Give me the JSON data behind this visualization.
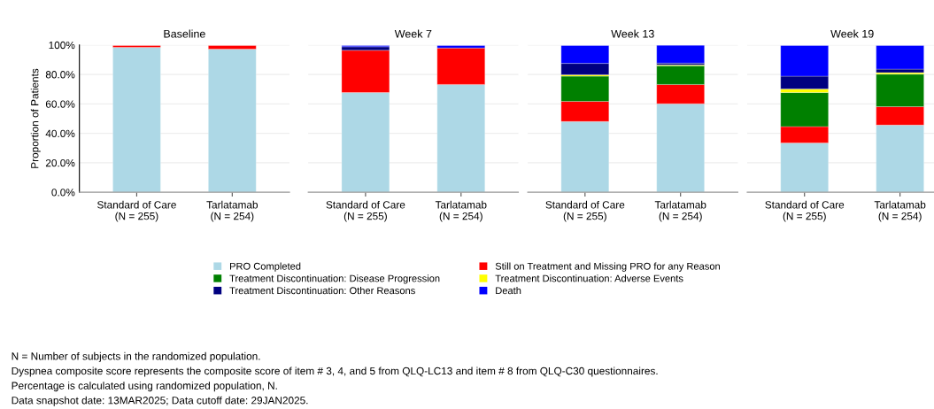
{
  "chart_data": [
    {
      "type": "bar",
      "stacked": true,
      "title": "Baseline",
      "ylabel": "Proportion of Patients",
      "categories": [
        "Standard of Care\n(N = 255)",
        "Tarlatamab\n(N = 254)"
      ],
      "ylim": [
        0,
        100
      ],
      "yticks": [
        {
          "value": 0,
          "label": "0.0%"
        },
        {
          "value": 20,
          "label": "20.0%"
        },
        {
          "value": 40,
          "label": "40.0%"
        },
        {
          "value": 60,
          "label": "60.0%"
        },
        {
          "value": 80,
          "label": "80.0%"
        },
        {
          "value": 100,
          "label": "100%"
        }
      ],
      "grid": "y",
      "legend": "bottom",
      "series": [
        {
          "name": "PRO Completed",
          "color": "#add8e6",
          "values": [
            98.4,
            97.2
          ]
        },
        {
          "name": "Still on Treatment and Missing PRO for any Reason",
          "color": "#ff0000",
          "values": [
            1.2,
            2.4
          ]
        },
        {
          "name": "Treatment Discontinuation: Disease Progression",
          "color": "#008000",
          "values": [
            null,
            null
          ]
        },
        {
          "name": "Treatment Discontinuation: Adverse Events",
          "color": "#ffff00",
          "values": [
            null,
            null
          ]
        },
        {
          "name": "Treatment Discontinuation: Other Reasons",
          "color": "#000080",
          "values": [
            null,
            null
          ]
        },
        {
          "name": "Death",
          "color": "#0000ff",
          "values": [
            null,
            null
          ]
        }
      ],
      "annotations": [
        "N = Number of subjects in the randomized population.",
        "Dyspnea composite score represents the composite score of item # 3, 4, and 5 from QLQ-LC13 and item # 8 from QLQ-C30 questionnaires.",
        "Percentage is calculated using randomized population, N.",
        "Data snapshot date: 13MAR2025; Data cutoff date: 29JAN2025."
      ]
    },
    {
      "type": "bar",
      "stacked": true,
      "title": "Week 7",
      "categories": [
        "Standard of Care\n(N = 255)",
        "Tarlatamab\n(N = 254)"
      ],
      "ylim": [
        0,
        100
      ],
      "tick_labels": "x",
      "grid": "y",
      "series": [
        {
          "color": "#add8e6",
          "values": [
            67.7,
            73.2
          ]
        },
        {
          "color": "#ff0000",
          "values": [
            28.7,
            24.8
          ]
        },
        {
          "color": "#008000",
          "values": [
            null,
            null
          ]
        },
        {
          "color": "#ffff00",
          "values": [
            null,
            null
          ]
        },
        {
          "color": "#000080",
          "values": [
            2.4,
            null
          ]
        },
        {
          "color": "#0000ff",
          "values": [
            0.8,
            1.6
          ]
        }
      ]
    },
    {
      "type": "bar",
      "stacked": true,
      "title": "Week 13",
      "categories": [
        "Standard of Care\n(N = 255)",
        "Tarlatamab\n(N = 254)"
      ],
      "ylim": [
        0,
        100
      ],
      "tick_labels": "x",
      "grid": "y",
      "series": [
        {
          "color": "#add8e6",
          "values": [
            48.0,
            60.1
          ]
        },
        {
          "color": "#ff0000",
          "values": [
            13.7,
            13.1
          ]
        },
        {
          "color": "#008000",
          "values": [
            17.1,
            12.7
          ]
        },
        {
          "color": "#ffff00",
          "values": [
            1.0,
            0.6
          ]
        },
        {
          "color": "#000080",
          "values": [
            7.7,
            1.2
          ]
        },
        {
          "color": "#0000ff",
          "values": [
            12.1,
            12.1
          ]
        }
      ]
    },
    {
      "type": "bar",
      "stacked": true,
      "title": "Week 19",
      "categories": [
        "Standard of Care\n(N = 255)",
        "Tarlatamab\n(N = 254)"
      ],
      "ylim": [
        0,
        100
      ],
      "tick_labels": "x",
      "grid": "y",
      "series": [
        {
          "color": "#add8e6",
          "values": [
            33.5,
            45.6
          ]
        },
        {
          "color": "#ff0000",
          "values": [
            11.1,
            12.5
          ]
        },
        {
          "color": "#008000",
          "values": [
            23.1,
            22.1
          ]
        },
        {
          "color": "#ffff00",
          "values": [
            2.4,
            1.0
          ]
        },
        {
          "color": "#000080",
          "values": [
            8.7,
            2.4
          ]
        },
        {
          "color": "#0000ff",
          "values": [
            20.8,
            16.0
          ]
        }
      ]
    }
  ]
}
